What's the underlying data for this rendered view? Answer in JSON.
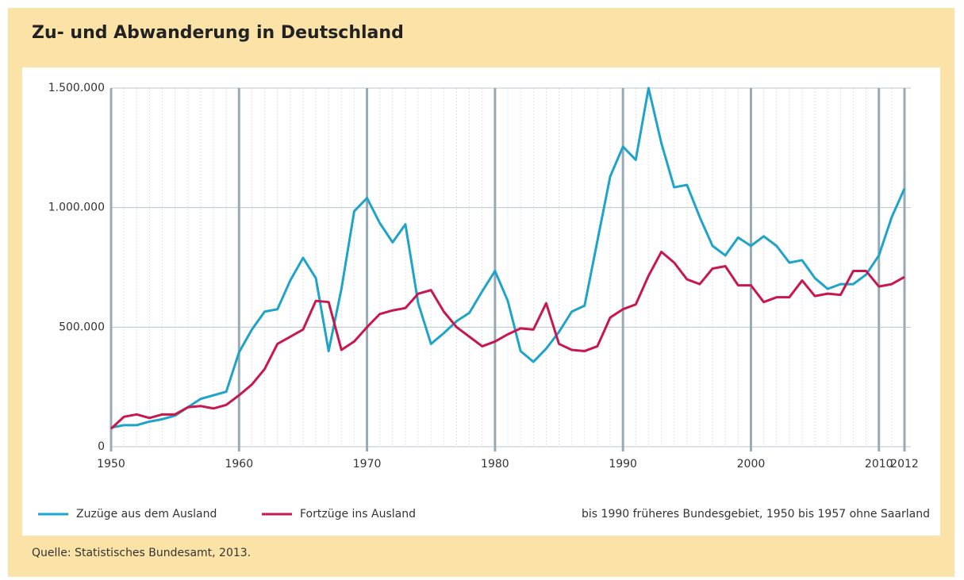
{
  "chart_data": {
    "type": "line",
    "title": "Zu- und Abwanderung in Deutschland",
    "x": [
      1950,
      1951,
      1952,
      1953,
      1954,
      1955,
      1956,
      1957,
      1958,
      1959,
      1960,
      1961,
      1962,
      1963,
      1964,
      1965,
      1966,
      1967,
      1968,
      1969,
      1970,
      1971,
      1972,
      1973,
      1974,
      1975,
      1976,
      1977,
      1978,
      1979,
      1980,
      1981,
      1982,
      1983,
      1984,
      1985,
      1986,
      1987,
      1988,
      1989,
      1990,
      1991,
      1992,
      1993,
      1994,
      1995,
      1996,
      1997,
      1998,
      1999,
      2000,
      2001,
      2002,
      2003,
      2004,
      2005,
      2006,
      2007,
      2008,
      2009,
      2010,
      2011,
      2012
    ],
    "series": [
      {
        "name": "Zuzüge aus dem Ausland",
        "color": "#1fa3c8",
        "values": [
          80000,
          90000,
          90000,
          105000,
          115000,
          130000,
          165000,
          200000,
          215000,
          230000,
          395000,
          490000,
          565000,
          575000,
          695000,
          790000,
          705000,
          400000,
          660000,
          985000,
          1040000,
          935000,
          855000,
          930000,
          600000,
          430000,
          475000,
          525000,
          560000,
          650000,
          735000,
          610000,
          400000,
          355000,
          410000,
          480000,
          565000,
          590000,
          860000,
          1130000,
          1255000,
          1200000,
          1500000,
          1270000,
          1085000,
          1095000,
          960000,
          840000,
          800000,
          875000,
          840000,
          880000,
          840000,
          770000,
          780000,
          705000,
          660000,
          680000,
          680000,
          720000,
          800000,
          960000,
          1080000
        ]
      },
      {
        "name": "Fortzüge ins Ausland",
        "color": "#c8174f",
        "values": [
          75000,
          125000,
          135000,
          120000,
          135000,
          135000,
          165000,
          170000,
          160000,
          175000,
          215000,
          260000,
          325000,
          430000,
          460000,
          490000,
          610000,
          605000,
          405000,
          440000,
          500000,
          555000,
          570000,
          580000,
          640000,
          655000,
          565000,
          500000,
          460000,
          420000,
          440000,
          470000,
          495000,
          490000,
          600000,
          430000,
          405000,
          400000,
          420000,
          540000,
          575000,
          595000,
          715000,
          815000,
          770000,
          700000,
          680000,
          745000,
          755000,
          675000,
          675000,
          605000,
          625000,
          625000,
          695000,
          630000,
          640000,
          635000,
          735000,
          735000,
          670000,
          680000,
          710000
        ]
      }
    ],
    "xlim": [
      1950,
      2012
    ],
    "xticks": [
      1950,
      1960,
      1970,
      1980,
      1990,
      2000,
      2010,
      2012
    ],
    "ylim": [
      0,
      1500000
    ],
    "yticks": [
      0,
      {
        "value": 500000,
        "label": "500.000"
      },
      {
        "value": 1000000,
        "label": "1.000.000"
      },
      {
        "value": 1500000,
        "label": "1.500.000"
      }
    ],
    "grid": true,
    "note": "bis 1990 früheres Bundesgebiet, 1950 bis 1957 ohne Saarland",
    "source": "Quelle: Statistisches Bundesamt, 2013."
  }
}
